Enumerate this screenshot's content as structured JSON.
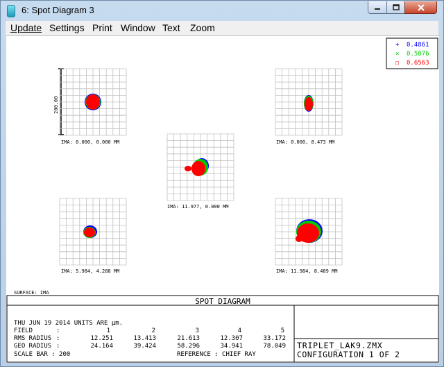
{
  "window": {
    "title": "6: Spot Diagram 3",
    "icon": "app-icon",
    "controls": [
      "minimize-icon",
      "maximize-icon",
      "close-icon"
    ]
  },
  "menu": [
    "Update",
    "Settings",
    "Print",
    "Window",
    "Text",
    "Zoom"
  ],
  "legend": [
    {
      "marker": "+",
      "label": "0.4861",
      "color": "#0000ff"
    },
    {
      "marker": "×",
      "label": "0.5876",
      "color": "#00cc00"
    },
    {
      "marker": "□",
      "label": "0.6563",
      "color": "#ff0000"
    }
  ],
  "scale_label": "200.00",
  "fields": [
    {
      "ima": "IMA: 0.000, 0.000 MM"
    },
    {
      "ima": "IMA: 0.000, 8.473 MM"
    },
    {
      "ima": "IMA: 11.977, 0.000 MM"
    },
    {
      "ima": "IMA: 5.984, 4.288 MM"
    },
    {
      "ima": "IMA: 11.984, 8.489 MM"
    }
  ],
  "surface": "SURFACE: IMA",
  "footer": {
    "heading": "SPOT DIAGRAM",
    "date": "THU JUN 19 2014  UNITS ARE μm.",
    "rows": [
      {
        "label": "FIELD",
        "sep": ":",
        "values": [
          "1",
          "2",
          "3",
          "4",
          "5"
        ]
      },
      {
        "label": "RMS RADIUS",
        "sep": ":",
        "values": [
          "12.251",
          "13.413",
          "21.613",
          "12.307",
          "33.172"
        ]
      },
      {
        "label": "GEO RADIUS",
        "sep": ":",
        "values": [
          "24.164",
          "39.424",
          "58.296",
          "34.941",
          "78.049"
        ]
      }
    ],
    "scale_bar": "SCALE BAR  :   200",
    "reference": "REFERENCE  : CHIEF RAY",
    "filename": "TRIPLET_LAK9.ZMX",
    "configuration": "CONFIGURATION 1 OF 2"
  },
  "colors": {
    "blue": "#0000ff",
    "green": "#00cc00",
    "red": "#ff0000",
    "grid": "#c0c0c0"
  }
}
